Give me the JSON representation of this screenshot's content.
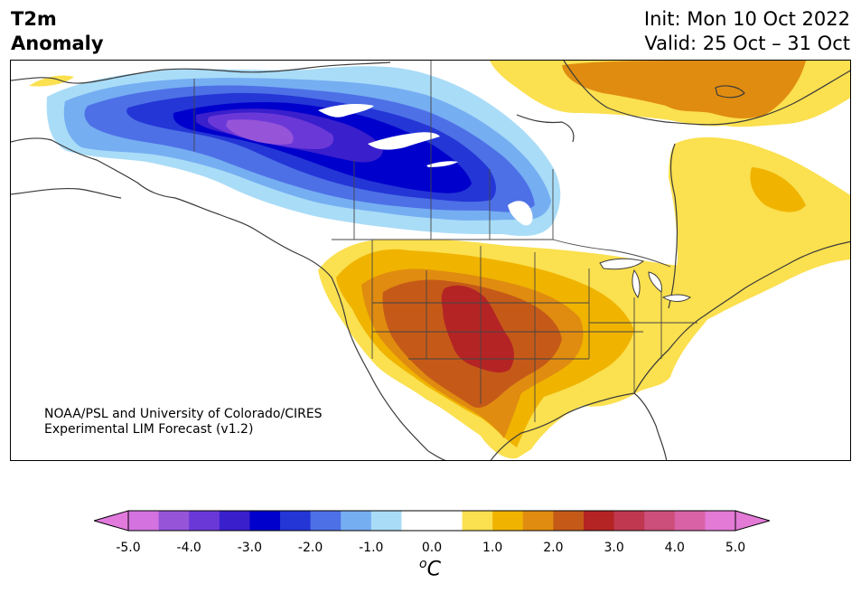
{
  "header": {
    "variable": "T2m",
    "subtitle": "Anomaly",
    "init": "Init: Mon 10 Oct 2022",
    "valid": "Valid: 25 Oct – 31 Oct"
  },
  "credit": {
    "line1": "NOAA/PSL and University of Colorado/CIRES",
    "line2": "Experimental LIM Forecast (v1.2)"
  },
  "colorbar": {
    "unit_sup": "o",
    "unit": "C",
    "ticks": [
      "-5.0",
      "-4.0",
      "-3.0",
      "-2.0",
      "-1.0",
      "0.0",
      "1.0",
      "2.0",
      "3.0",
      "4.0",
      "5.0"
    ],
    "colors": [
      "#d472e0",
      "#9654d9",
      "#6b38d8",
      "#3a1fcc",
      "#0000cc",
      "#2436d6",
      "#4d70e6",
      "#76aef2",
      "#a9dcf7",
      "#ffffff",
      "#ffffff",
      "#fbe04f",
      "#f0b400",
      "#e08c10",
      "#c55a18",
      "#b52424",
      "#bf3850",
      "#cc4e7a",
      "#d962a6",
      "#e27ad6"
    ],
    "under_color": "#e27ade",
    "over_color": "#e27ad6"
  },
  "palette": {
    "c1": "#fbe04f",
    "c2": "#f0b400",
    "c3": "#e08c10",
    "c4": "#c55a18",
    "c5": "#b52424",
    "b1": "#a9dcf7",
    "b2": "#76aef2",
    "b3": "#4d70e6",
    "b4": "#2436d6",
    "b5": "#0000cc",
    "b6": "#3a1fcc",
    "b7": "#6b38d8",
    "b8": "#9654d9"
  }
}
